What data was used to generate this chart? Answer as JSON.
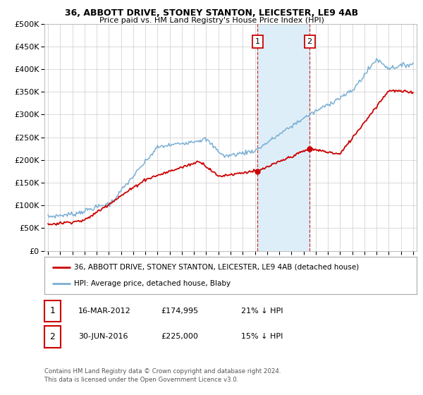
{
  "title": "36, ABBOTT DRIVE, STONEY STANTON, LEICESTER, LE9 4AB",
  "subtitle": "Price paid vs. HM Land Registry's House Price Index (HPI)",
  "legend_house": "36, ABBOTT DRIVE, STONEY STANTON, LEICESTER, LE9 4AB (detached house)",
  "legend_hpi": "HPI: Average price, detached house, Blaby",
  "footnote": "Contains HM Land Registry data © Crown copyright and database right 2024.\nThis data is licensed under the Open Government Licence v3.0.",
  "sale1_date": "16-MAR-2012",
  "sale1_price": "£174,995",
  "sale1_hpi_text": "21% ↓ HPI",
  "sale2_date": "30-JUN-2016",
  "sale2_price": "£225,000",
  "sale2_hpi_text": "15% ↓ HPI",
  "sale1_x": 2012.21,
  "sale1_y": 174995,
  "sale2_x": 2016.5,
  "sale2_y": 225000,
  "house_color": "#cc0000",
  "hpi_color": "#7bafd4",
  "highlight_color": "#ddeef8",
  "vline_color": "#cc3333",
  "ylim": [
    0,
    500000
  ],
  "xlim_start": 1994.7,
  "xlim_end": 2025.3,
  "background_color": "#ffffff",
  "grid_color": "#cccccc",
  "years_hpi": [
    1995,
    1995.08,
    1995.17,
    1995.25,
    1995.33,
    1995.42,
    1995.5,
    1995.58,
    1995.67,
    1995.75,
    1995.83,
    1995.92,
    1996,
    1996.08,
    1996.17,
    1996.25,
    1996.33,
    1996.42,
    1996.5,
    1996.58,
    1996.67,
    1996.75,
    1996.83,
    1996.92,
    1997,
    1997.08,
    1997.17,
    1997.25,
    1997.33,
    1997.42,
    1997.5,
    1997.58,
    1997.67,
    1997.75,
    1997.83,
    1997.92,
    1998,
    1998.08,
    1998.17,
    1998.25,
    1998.33,
    1998.42,
    1998.5,
    1998.58,
    1998.67,
    1998.75,
    1998.83,
    1998.92,
    1999,
    1999.08,
    1999.17,
    1999.25,
    1999.33,
    1999.42,
    1999.5,
    1999.58,
    1999.67,
    1999.75,
    1999.83,
    1999.92,
    2000,
    2000.08,
    2000.17,
    2000.25,
    2000.33,
    2000.42,
    2000.5,
    2000.58,
    2000.67,
    2000.75,
    2000.83,
    2000.92,
    2001,
    2001.08,
    2001.17,
    2001.25,
    2001.33,
    2001.42,
    2001.5,
    2001.58,
    2001.67,
    2001.75,
    2001.83,
    2001.92,
    2002,
    2002.08,
    2002.17,
    2002.25,
    2002.33,
    2002.42,
    2002.5,
    2002.58,
    2002.67,
    2002.75,
    2002.83,
    2002.92,
    2003,
    2003.08,
    2003.17,
    2003.25,
    2003.33,
    2003.42,
    2003.5,
    2003.58,
    2003.67,
    2003.75,
    2003.83,
    2003.92,
    2004,
    2004.08,
    2004.17,
    2004.25,
    2004.33,
    2004.42,
    2004.5,
    2004.58,
    2004.67,
    2004.75,
    2004.83,
    2004.92,
    2005,
    2005.08,
    2005.17,
    2005.25,
    2005.33,
    2005.42,
    2005.5,
    2005.58,
    2005.67,
    2005.75,
    2005.83,
    2005.92,
    2006,
    2006.08,
    2006.17,
    2006.25,
    2006.33,
    2006.42,
    2006.5,
    2006.58,
    2006.67,
    2006.75,
    2006.83,
    2006.92,
    2007,
    2007.08,
    2007.17,
    2007.25,
    2007.33,
    2007.42,
    2007.5,
    2007.58,
    2007.67,
    2007.75,
    2007.83,
    2007.92,
    2008,
    2008.08,
    2008.17,
    2008.25,
    2008.33,
    2008.42,
    2008.5,
    2008.58,
    2008.67,
    2008.75,
    2008.83,
    2008.92,
    2009,
    2009.08,
    2009.17,
    2009.25,
    2009.33,
    2009.42,
    2009.5,
    2009.58,
    2009.67,
    2009.75,
    2009.83,
    2009.92,
    2010,
    2010.08,
    2010.17,
    2010.25,
    2010.33,
    2010.42,
    2010.5,
    2010.58,
    2010.67,
    2010.75,
    2010.83,
    2010.92,
    2011,
    2011.08,
    2011.17,
    2011.25,
    2011.33,
    2011.42,
    2011.5,
    2011.58,
    2011.67,
    2011.75,
    2011.83,
    2011.92,
    2012,
    2012.08,
    2012.17,
    2012.25,
    2012.33,
    2012.42,
    2012.5,
    2012.58,
    2012.67,
    2012.75,
    2012.83,
    2012.92,
    2013,
    2013.08,
    2013.17,
    2013.25,
    2013.33,
    2013.42,
    2013.5,
    2013.58,
    2013.67,
    2013.75,
    2013.83,
    2013.92,
    2014,
    2014.08,
    2014.17,
    2014.25,
    2014.33,
    2014.42,
    2014.5,
    2014.58,
    2014.67,
    2014.75,
    2014.83,
    2014.92,
    2015,
    2015.08,
    2015.17,
    2015.25,
    2015.33,
    2015.42,
    2015.5,
    2015.58,
    2015.67,
    2015.75,
    2015.83,
    2015.92,
    2016,
    2016.08,
    2016.17,
    2016.25,
    2016.33,
    2016.42,
    2016.5,
    2016.58,
    2016.67,
    2016.75,
    2016.83,
    2016.92,
    2017,
    2017.08,
    2017.17,
    2017.25,
    2017.33,
    2017.42,
    2017.5,
    2017.58,
    2017.67,
    2017.75,
    2017.83,
    2017.92,
    2018,
    2018.08,
    2018.17,
    2018.25,
    2018.33,
    2018.42,
    2018.5,
    2018.58,
    2018.67,
    2018.75,
    2018.83,
    2018.92,
    2019,
    2019.08,
    2019.17,
    2019.25,
    2019.33,
    2019.42,
    2019.5,
    2019.58,
    2019.67,
    2019.75,
    2019.83,
    2019.92,
    2020,
    2020.08,
    2020.17,
    2020.25,
    2020.33,
    2020.42,
    2020.5,
    2020.58,
    2020.67,
    2020.75,
    2020.83,
    2020.92,
    2021,
    2021.08,
    2021.17,
    2021.25,
    2021.33,
    2021.42,
    2021.5,
    2021.58,
    2021.67,
    2021.75,
    2021.83,
    2021.92,
    2022,
    2022.08,
    2022.17,
    2022.25,
    2022.33,
    2022.42,
    2022.5,
    2022.58,
    2022.67,
    2022.75,
    2022.83,
    2022.92,
    2023,
    2023.08,
    2023.17,
    2023.25,
    2023.33,
    2023.42,
    2023.5,
    2023.58,
    2023.67,
    2023.75,
    2023.83,
    2023.92,
    2024,
    2024.08,
    2024.17,
    2024.25,
    2024.33,
    2024.42,
    2024.5,
    2024.58,
    2024.67,
    2024.75,
    2024.83,
    2024.92,
    2025
  ]
}
